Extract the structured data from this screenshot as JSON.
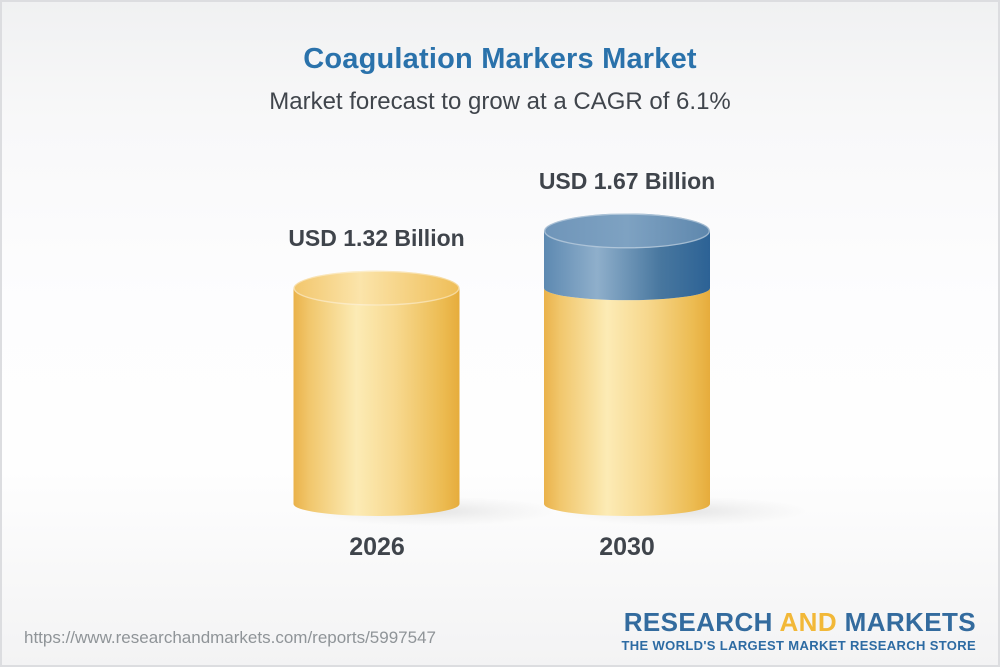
{
  "header": {
    "title": "Coagulation Markers Market",
    "subtitle": "Market forecast to grow at a CAGR of 6.1%"
  },
  "chart_data": {
    "type": "bar",
    "variant": "3d-cylinder",
    "categories": [
      "2026",
      "2030"
    ],
    "values": [
      1.32,
      1.67
    ],
    "value_labels": [
      "USD 1.32 Billion",
      "USD 1.67 Billion"
    ],
    "base_value": 1.32,
    "unit": "USD Billion",
    "cagr_pct": 6.1,
    "colors": {
      "base_segment": "#F5CE7E",
      "growth_segment": "#4A7BA6",
      "label_text": "#3f444b"
    },
    "legend": false,
    "axes_shown": false
  },
  "footer": {
    "url": "https://www.researchandmarkets.com/reports/5997547",
    "logo": {
      "part1": "RESEARCH",
      "part2": "AND",
      "part3": "MARKETS",
      "tagline": "THE WORLD'S LARGEST MARKET RESEARCH STORE",
      "blue": "#336b9e",
      "gold": "#f2b838"
    }
  }
}
